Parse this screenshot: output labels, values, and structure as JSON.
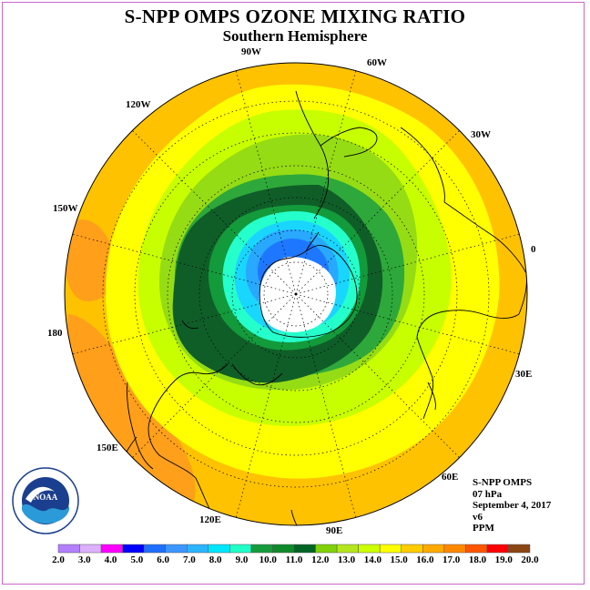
{
  "title": "S-NPP OMPS OZONE MIXING RATIO",
  "subtitle": "Southern Hemisphere",
  "longitude_labels": {
    "lon_90w": "90W",
    "lon_60w": "60W",
    "lon_30w": "30W",
    "lon_0": "0",
    "lon_30e": "30E",
    "lon_60e": "60E",
    "lon_90e": "90E",
    "lon_120e": "120E",
    "lon_150e": "150E",
    "lon_180": "180",
    "lon_150w": "150W",
    "lon_120w": "120W"
  },
  "info": {
    "instrument": "S-NPP OMPS",
    "level": "07 hPa",
    "date": "September 4, 2017",
    "version": "v6",
    "units": "PPM"
  },
  "logo": {
    "text": "NOAA",
    "ring_text": "NATIONAL OCEANIC AND ATMOSPHERIC ADMINISTRATION · U.S. DEPARTMENT OF COMMERCE"
  },
  "colorbar": {
    "colors": [
      "#b37fff",
      "#dcb0ff",
      "#ff00ff",
      "#0000ff",
      "#1e6fff",
      "#3c96ff",
      "#2cb4ff",
      "#00e6ff",
      "#21ffc8",
      "#169b3c",
      "#0e8a2a",
      "#006424",
      "#80d10a",
      "#b5e61d",
      "#ccff00",
      "#ffff00",
      "#ffcc00",
      "#ffaa00",
      "#ff8800",
      "#ff5500",
      "#ff0000",
      "#8b4513"
    ],
    "labels": [
      "2.0",
      "3.0",
      "4.0",
      "5.0",
      "6.0",
      "7.0",
      "8.0",
      "9.0",
      "10.0",
      "11.0",
      "12.0",
      "13.0",
      "14.0",
      "15.0",
      "16.0",
      "17.0",
      "18.0",
      "19.0",
      "20.0"
    ]
  },
  "map_colors": {
    "outer": "#ffc200",
    "orange_patch": "#ff9f1a",
    "yellow": "#ffff00",
    "lime": "#c8ff00",
    "lightgreen": "#96dc14",
    "green": "#2ea83a",
    "darkgreen": "#0f5e28",
    "midgreen": "#139a3b",
    "aqua": "#25ffcc",
    "cyan": "#19d6ff",
    "skyblue": "#28a8ff",
    "blue": "#1e78ff",
    "white": "#ffffff"
  }
}
